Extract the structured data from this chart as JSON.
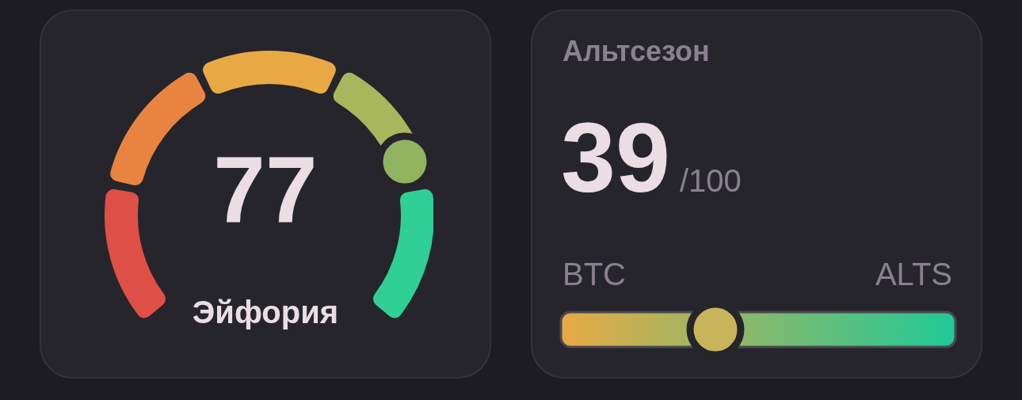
{
  "chart_data": [
    {
      "type": "other",
      "values": [
        77
      ],
      "data_labels": true,
      "annotations": [
        "Эйфория"
      ]
    },
    {
      "type": "other",
      "title": "Альтсезон",
      "values": [
        39
      ],
      "data_labels": true,
      "annotations": [
        "/100",
        "BTC",
        "ALTS"
      ]
    }
  ]
}
